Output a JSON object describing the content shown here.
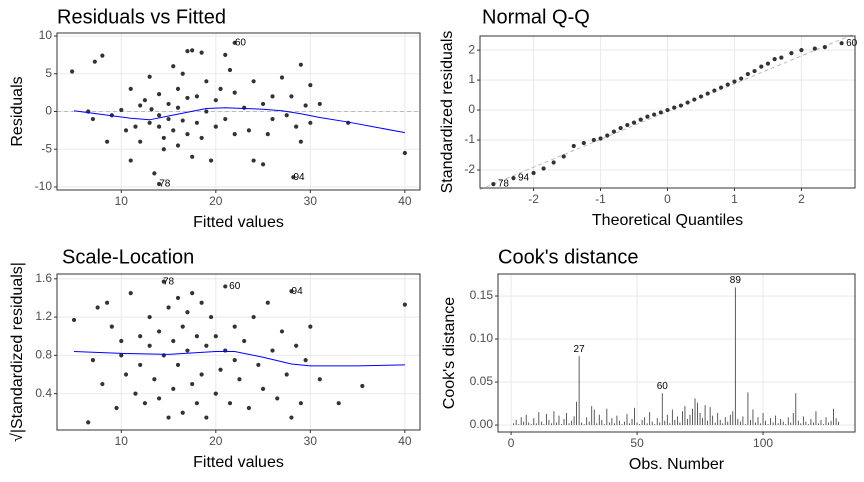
{
  "chart_data": [
    {
      "type": "scatter",
      "title": "Residuals vs Fitted",
      "xlabel": "Fitted values",
      "ylabel": "Residuals",
      "xlim": [
        3.2,
        41.6
      ],
      "ylim": [
        -10.4,
        10.4
      ],
      "xticks": [
        10,
        20,
        30,
        40
      ],
      "yticks": [
        -10,
        -5,
        0,
        5,
        10
      ],
      "grid": true,
      "color": "#333333",
      "x": [
        4.8,
        6.5,
        7,
        7.2,
        8,
        8.5,
        9,
        10,
        10.5,
        11,
        11,
        11.5,
        12,
        12,
        12.5,
        13,
        13,
        13.2,
        13.5,
        14,
        14,
        14,
        14.5,
        14.5,
        15,
        15,
        15.5,
        15.5,
        16,
        16,
        16,
        16.5,
        16.5,
        17,
        17,
        17,
        17.5,
        17.5,
        18,
        18,
        18.5,
        18.5,
        19,
        19,
        19.5,
        20,
        20,
        20.5,
        21,
        21,
        21.5,
        22,
        22,
        23,
        23.5,
        24,
        24,
        25,
        25,
        25.5,
        26,
        26,
        27,
        27.5,
        28,
        28.5,
        29,
        29,
        29.5,
        30,
        30,
        31,
        34,
        40,
        22,
        14,
        28.2
      ],
      "values": [
        5.3,
        0,
        -1,
        6.6,
        7.4,
        -4,
        -0.5,
        0.2,
        -2.5,
        -6.5,
        3,
        -2,
        -4,
        0.8,
        1.5,
        -1.5,
        4.6,
        0.3,
        -8.2,
        -2,
        2.3,
        -0.5,
        -5,
        -3.5,
        1,
        -1,
        6,
        -2.5,
        3,
        -4.5,
        0.5,
        5,
        -1.2,
        8,
        -3,
        1.8,
        -6,
        8.1,
        2,
        -1.5,
        -3.5,
        7.8,
        0,
        4,
        -6.5,
        1.5,
        -2,
        3,
        7.5,
        -1,
        5.5,
        -3,
        2.5,
        0.5,
        -2.5,
        -6.5,
        4,
        -7,
        1,
        -3,
        2,
        -1,
        4.5,
        -0.5,
        2,
        -2,
        6.2,
        -4,
        0.8,
        3.5,
        -1.5,
        1,
        -1.5,
        -5.5,
        9.1,
        -9.6,
        -8.7
      ],
      "smooth": {
        "color": "#0000ff",
        "x": [
          5,
          8,
          11,
          13,
          15,
          17,
          19,
          21,
          23,
          25,
          27,
          29,
          31,
          34,
          37,
          40
        ],
        "values": [
          0.1,
          -0.4,
          -0.9,
          -1.1,
          -0.6,
          -0.1,
          0.4,
          0.5,
          0.4,
          0.3,
          0.1,
          -0.3,
          -0.8,
          -1.4,
          -2.1,
          -2.8
        ]
      },
      "hline": 0,
      "annotations": [
        {
          "text": "60",
          "x": 22.6,
          "y": 9.1
        },
        {
          "text": "78",
          "x": 14.6,
          "y": -9.6
        },
        {
          "text": "94",
          "x": 28.8,
          "y": -8.7
        }
      ]
    },
    {
      "type": "scatter",
      "title": "Normal Q-Q",
      "xlabel": "Theoretical Quantiles",
      "ylabel": "Standardized residuals",
      "xlim": [
        -2.8,
        2.8
      ],
      "ylim": [
        -2.6,
        2.47
      ],
      "xticks": [
        -2,
        -1,
        0,
        1,
        2
      ],
      "yticks": [
        -2,
        -1,
        0,
        1,
        2
      ],
      "grid": true,
      "color": "#333333",
      "x": [
        -2.6,
        -2.3,
        -2.0,
        -1.85,
        -1.7,
        -1.55,
        -1.4,
        -1.25,
        -1.1,
        -1.0,
        -0.9,
        -0.8,
        -0.7,
        -0.6,
        -0.5,
        -0.4,
        -0.3,
        -0.2,
        -0.1,
        0,
        0.1,
        0.2,
        0.3,
        0.4,
        0.5,
        0.6,
        0.7,
        0.8,
        0.9,
        1.0,
        1.1,
        1.2,
        1.3,
        1.4,
        1.5,
        1.6,
        1.7,
        1.85,
        2.0,
        2.2,
        2.35,
        2.6
      ],
      "values": [
        -2.47,
        -2.27,
        -2.1,
        -1.95,
        -1.75,
        -1.55,
        -1.2,
        -1.1,
        -1.0,
        -0.95,
        -0.85,
        -0.72,
        -0.6,
        -0.5,
        -0.42,
        -0.32,
        -0.22,
        -0.15,
        -0.08,
        0,
        0.08,
        0.15,
        0.25,
        0.35,
        0.45,
        0.55,
        0.65,
        0.75,
        0.85,
        0.95,
        1.05,
        1.2,
        1.3,
        1.45,
        1.55,
        1.7,
        1.75,
        1.9,
        2.0,
        2.05,
        2.1,
        2.23
      ],
      "refline": {
        "x": [
          -2.8,
          2.8
        ],
        "values": [
          -2.65,
          2.55
        ]
      },
      "annotations": [
        {
          "text": "78",
          "x": -2.45,
          "y": -2.47
        },
        {
          "text": "94",
          "x": -2.15,
          "y": -2.27
        },
        {
          "text": "60",
          "x": 2.75,
          "y": 2.23
        }
      ]
    },
    {
      "type": "scatter",
      "title": "Scale-Location",
      "xlabel": "Fitted values",
      "ylabel": "√|Standardized residuals|",
      "xlim": [
        3.2,
        41.6
      ],
      "ylim": [
        0.02,
        1.65
      ],
      "xticks": [
        10,
        20,
        30,
        40
      ],
      "yticks": [
        0.4,
        0.8,
        1.2,
        1.6
      ],
      "grid": true,
      "color": "#333333",
      "x": [
        5,
        6.5,
        7,
        7.5,
        8,
        8.5,
        9,
        9.5,
        10,
        10,
        10.5,
        11,
        11.5,
        12,
        12,
        12.5,
        13,
        13,
        13.5,
        14,
        14,
        14.5,
        14.5,
        15,
        15,
        15.5,
        15.5,
        16,
        16,
        16.5,
        16.5,
        17,
        17,
        17.5,
        17.5,
        18,
        18,
        18.5,
        18.5,
        19,
        19,
        19.5,
        20,
        20,
        20.5,
        21,
        21,
        21.5,
        22,
        22,
        22.5,
        23,
        23.5,
        24,
        24.5,
        25,
        25.5,
        26,
        26.5,
        27,
        27.5,
        28,
        28,
        28.5,
        29,
        29.5,
        30,
        31,
        33,
        35.5,
        40
      ],
      "values": [
        1.17,
        0.1,
        0.75,
        1.3,
        0.5,
        1.35,
        1.1,
        0.25,
        0.8,
        0.95,
        0.6,
        1.45,
        0.4,
        0.7,
        1.0,
        0.3,
        0.9,
        1.2,
        0.55,
        1.05,
        0.35,
        0.8,
        1.57,
        0.15,
        1.3,
        0.95,
        0.45,
        1.4,
        0.7,
        1.1,
        0.2,
        0.85,
        1.25,
        0.5,
        1.45,
        0.3,
        1.0,
        0.6,
        1.35,
        0.15,
        0.9,
        1.2,
        0.4,
        1.0,
        0.65,
        1.52,
        0.85,
        0.3,
        1.1,
        0.75,
        0.55,
        0.95,
        0.25,
        1.2,
        0.7,
        0.45,
        1.35,
        0.85,
        0.35,
        1.05,
        0.6,
        0.15,
        1.47,
        0.9,
        0.3,
        0.75,
        1.1,
        0.55,
        0.3,
        0.48,
        1.33
      ],
      "smooth": {
        "color": "#0000ff",
        "x": [
          5,
          10,
          15,
          20,
          22,
          25,
          28,
          30,
          35,
          40
        ],
        "values": [
          0.84,
          0.82,
          0.81,
          0.84,
          0.84,
          0.78,
          0.71,
          0.69,
          0.69,
          0.7
        ]
      },
      "annotations": [
        {
          "text": "78",
          "x": 15.0,
          "y": 1.57
        },
        {
          "text": "60",
          "x": 22.0,
          "y": 1.52
        },
        {
          "text": "94",
          "x": 28.6,
          "y": 1.47
        }
      ]
    },
    {
      "type": "bar",
      "title": "Cook's distance",
      "xlabel": "Obs. Number",
      "ylabel": "Cook's distance",
      "xlim": [
        -5.2,
        136.5
      ],
      "ylim": [
        -0.0081,
        0.1756
      ],
      "xticks": [
        0,
        50,
        100
      ],
      "yticks": [
        {
          "value": 0,
          "label": "0.00"
        },
        {
          "value": 0.05,
          "label": "0.05"
        },
        {
          "value": 0.1,
          "label": "0.10"
        },
        {
          "value": 0.15,
          "label": "0.15"
        }
      ],
      "grid": true,
      "color": "#333333",
      "x": [
        1,
        2,
        3,
        4,
        5,
        6,
        7,
        8,
        9,
        10,
        11,
        12,
        13,
        14,
        15,
        16,
        17,
        18,
        19,
        20,
        21,
        22,
        23,
        24,
        25,
        26,
        27,
        28,
        29,
        30,
        31,
        32,
        33,
        34,
        35,
        36,
        37,
        38,
        39,
        40,
        41,
        42,
        43,
        44,
        45,
        46,
        47,
        48,
        49,
        50,
        51,
        52,
        53,
        54,
        55,
        56,
        57,
        58,
        59,
        60,
        61,
        62,
        63,
        64,
        65,
        66,
        67,
        68,
        69,
        70,
        71,
        72,
        73,
        74,
        75,
        76,
        77,
        78,
        79,
        80,
        81,
        82,
        83,
        84,
        85,
        86,
        87,
        88,
        89,
        90,
        91,
        92,
        93,
        94,
        95,
        96,
        97,
        98,
        99,
        100,
        101,
        102,
        103,
        104,
        105,
        106,
        107,
        108,
        109,
        110,
        111,
        112,
        113,
        114,
        115,
        116,
        117,
        118,
        119,
        120,
        121,
        122,
        123,
        124,
        125,
        126,
        127,
        128,
        129,
        130
      ],
      "values": [
        0.002,
        0.006,
        0.001,
        0.009,
        0.004,
        0.012,
        0.003,
        0.001,
        0.008,
        0.002,
        0.015,
        0.004,
        0.001,
        0.013,
        0.006,
        0.002,
        0.016,
        0.003,
        0.011,
        0.001,
        0.007,
        0.014,
        0.002,
        0.005,
        0.01,
        0.027,
        0.08,
        0.003,
        0.001,
        0.009,
        0.004,
        0.022,
        0.018,
        0.002,
        0.012,
        0.006,
        0.001,
        0.019,
        0.003,
        0.008,
        0.002,
        0.011,
        0.005,
        0.001,
        0.004,
        0.013,
        0.002,
        0.007,
        0.02,
        0.003,
        0.001,
        0.006,
        0.009,
        0.002,
        0.015,
        0.004,
        0.001,
        0.008,
        0.003,
        0.037,
        0.005,
        0.012,
        0.002,
        0.018,
        0.006,
        0.01,
        0.003,
        0.016,
        0.022,
        0.007,
        0.012,
        0.019,
        0.031,
        0.026,
        0.014,
        0.008,
        0.023,
        0.005,
        0.021,
        0.011,
        0.003,
        0.014,
        0.006,
        0.002,
        0.009,
        0.004,
        0.012,
        0.016,
        0.16,
        0.007,
        0.004,
        0.01,
        0.001,
        0.038,
        0.006,
        0.018,
        0.003,
        0.009,
        0.002,
        0.014,
        0.005,
        0.001,
        0.008,
        0.003,
        0.011,
        0.002,
        0.007,
        0.004,
        0.001,
        0.009,
        0.003,
        0.014,
        0.037,
        0.005,
        0.002,
        0.01,
        0.004,
        0.001,
        0.007,
        0.003,
        0.016,
        0.002,
        0.006,
        0.001,
        0.009,
        0.003,
        0.005,
        0.019,
        0.008,
        0.004
      ],
      "annotations": [
        {
          "text": "27",
          "x": 27,
          "y": 0.08
        },
        {
          "text": "60",
          "x": 60,
          "y": 0.037
        },
        {
          "text": "89",
          "x": 89,
          "y": 0.16
        }
      ]
    }
  ]
}
